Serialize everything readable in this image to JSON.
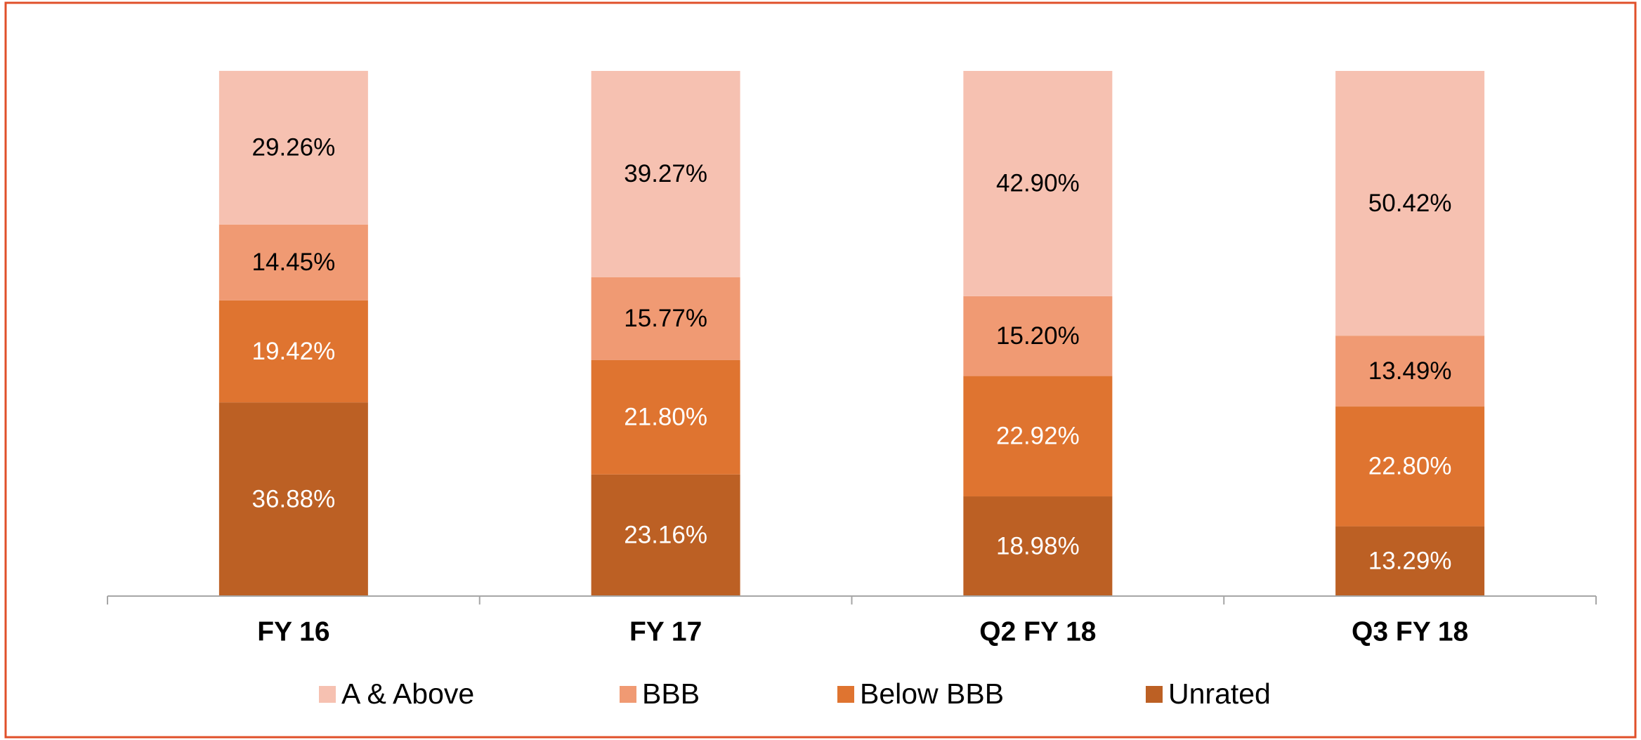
{
  "chart_data": {
    "type": "stacked_bar",
    "categories": [
      "FY 16",
      "FY 17",
      "Q2 FY 18",
      "Q3 FY 18"
    ],
    "ylim": [
      0,
      100
    ],
    "series": [
      {
        "name": "Unrated",
        "color": "#bc6024",
        "label_color": "#ffffff",
        "values": [
          36.88,
          23.16,
          18.98,
          13.29
        ],
        "value_labels": [
          "36.88%",
          "23.16%",
          "18.98%",
          "13.29%"
        ]
      },
      {
        "name": "Below BBB",
        "color": "#df7430",
        "label_color": "#ffffff",
        "values": [
          19.42,
          21.8,
          22.92,
          22.8
        ],
        "value_labels": [
          "19.42%",
          "21.80%",
          "22.92%",
          "22.80%"
        ]
      },
      {
        "name": "BBB",
        "color": "#f09a73",
        "label_color": "#000000",
        "values": [
          14.45,
          15.77,
          15.2,
          13.49
        ],
        "value_labels": [
          "14.45%",
          "15.77%",
          "15.20%",
          "13.49%"
        ]
      },
      {
        "name": "A & Above",
        "color": "#f6c1b1",
        "label_color": "#000000",
        "values": [
          29.26,
          39.27,
          42.9,
          50.42
        ],
        "value_labels": [
          "29.26%",
          "39.27%",
          "42.90%",
          "50.42%"
        ]
      }
    ],
    "legend": "bottom"
  }
}
